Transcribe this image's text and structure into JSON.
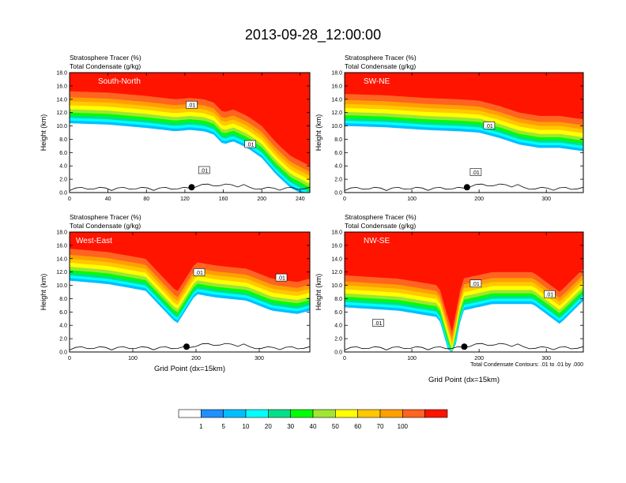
{
  "figure": {
    "title": "2013-09-28_12:00:00",
    "contour_note": "Total Condensate Contours: .01 to .01 by .000"
  },
  "colors": {
    "levels": [
      "#ffffff",
      "#1e90ff",
      "#00bfff",
      "#00ffff",
      "#00e08a",
      "#00ff00",
      "#a0e632",
      "#ffff00",
      "#ffc800",
      "#ffa000",
      "#ff6420",
      "#ff1400"
    ]
  },
  "chart_data": [
    {
      "type": "heatmap",
      "panel": "South-North",
      "title": "Stratosphere Tracer (%)",
      "subtitle": "Total Condensate (g/kg)",
      "ylabel": "Height (km)",
      "xlabel": "",
      "xlim": [
        0,
        250
      ],
      "ylim": [
        0,
        18
      ],
      "xticks": [
        0,
        40,
        80,
        120,
        160,
        200,
        240
      ],
      "yticks": [
        0,
        2,
        4,
        6,
        8,
        10,
        12,
        14,
        16,
        18
      ],
      "tracer_top_km": [
        [
          0,
          15.2
        ],
        [
          40,
          15.0
        ],
        [
          80,
          14.5
        ],
        [
          110,
          14.0
        ],
        [
          125,
          14.2
        ],
        [
          140,
          14.0
        ],
        [
          150,
          13.5
        ],
        [
          160,
          12.0
        ],
        [
          170,
          12.5
        ],
        [
          185,
          11.5
        ],
        [
          200,
          10.0
        ],
        [
          215,
          7.5
        ],
        [
          230,
          5.5
        ],
        [
          250,
          4.0
        ]
      ],
      "contour_labels": [
        {
          "x": 127,
          "y": 13.0,
          "text": ".01"
        },
        {
          "x": 188,
          "y": 7.1,
          "text": ".01"
        },
        {
          "x": 140,
          "y": 3.2,
          "text": ".01"
        }
      ],
      "marker": {
        "x": 127,
        "y": 0.8
      }
    },
    {
      "type": "heatmap",
      "panel": "SW-NE",
      "title": "Stratosphere Tracer (%)",
      "subtitle": "Total Condensate (g/kg)",
      "ylabel": "Height (km)",
      "xlabel": "",
      "xlim": [
        0,
        355
      ],
      "ylim": [
        0,
        18
      ],
      "xticks": [
        0,
        100,
        200,
        300
      ],
      "yticks": [
        0,
        2,
        4,
        6,
        8,
        10,
        12,
        14,
        16,
        18
      ],
      "tracer_top_km": [
        [
          0,
          14.8
        ],
        [
          60,
          14.6
        ],
        [
          120,
          14.2
        ],
        [
          170,
          14.0
        ],
        [
          200,
          13.8
        ],
        [
          230,
          13.0
        ],
        [
          260,
          12.0
        ],
        [
          290,
          11.5
        ],
        [
          320,
          11.5
        ],
        [
          355,
          11.0
        ]
      ],
      "contour_labels": [
        {
          "x": 215,
          "y": 9.9,
          "text": ".01"
        },
        {
          "x": 195,
          "y": 2.9,
          "text": ".01"
        }
      ],
      "marker": {
        "x": 182,
        "y": 0.8
      }
    },
    {
      "type": "heatmap",
      "panel": "West-East",
      "title": "Stratosphere Tracer (%)",
      "subtitle": "Total Condensate (g/kg)",
      "ylabel": "Height (km)",
      "xlabel": "Grid Point (dx=15km)",
      "xlim": [
        0,
        380
      ],
      "ylim": [
        0,
        18
      ],
      "xticks": [
        0,
        100,
        200,
        300
      ],
      "yticks": [
        0,
        2,
        4,
        6,
        8,
        10,
        12,
        14,
        16,
        18
      ],
      "tracer_top_km": [
        [
          0,
          15.5
        ],
        [
          60,
          15.0
        ],
        [
          120,
          14.0
        ],
        [
          170,
          9.0
        ],
        [
          200,
          13.5
        ],
        [
          230,
          13.0
        ],
        [
          280,
          12.5
        ],
        [
          320,
          11.0
        ],
        [
          360,
          10.5
        ],
        [
          380,
          11.0
        ]
      ],
      "contour_labels": [
        {
          "x": 205,
          "y": 11.8,
          "text": ".01"
        },
        {
          "x": 335,
          "y": 11.0,
          "text": ".01"
        }
      ],
      "marker": {
        "x": 185,
        "y": 0.8
      }
    },
    {
      "type": "heatmap",
      "panel": "NW-SE",
      "title": "Stratosphere Tracer (%)",
      "subtitle": "Total Condensate (g/kg)",
      "ylabel": "Height (km)",
      "xlabel": "Grid Point (dx=15km)",
      "xlim": [
        0,
        355
      ],
      "ylim": [
        0,
        18
      ],
      "xticks": [
        0,
        100,
        200,
        300
      ],
      "yticks": [
        0,
        2,
        4,
        6,
        8,
        10,
        12,
        14,
        16,
        18
      ],
      "tracer_top_km": [
        [
          0,
          11.5
        ],
        [
          80,
          11.0
        ],
        [
          140,
          10.0
        ],
        [
          160,
          3.0
        ],
        [
          175,
          11.0
        ],
        [
          220,
          12.0
        ],
        [
          280,
          12.0
        ],
        [
          320,
          9.0
        ],
        [
          355,
          12.5
        ]
      ],
      "contour_labels": [
        {
          "x": 195,
          "y": 10.1,
          "text": ".01"
        },
        {
          "x": 305,
          "y": 8.5,
          "text": ".01"
        },
        {
          "x": 50,
          "y": 4.2,
          "text": ".01"
        }
      ],
      "marker": {
        "x": 178,
        "y": 0.8
      }
    }
  ],
  "colorbar": {
    "labels": [
      "1",
      "5",
      "10",
      "20",
      "30",
      "40",
      "50",
      "60",
      "70",
      "100"
    ]
  }
}
